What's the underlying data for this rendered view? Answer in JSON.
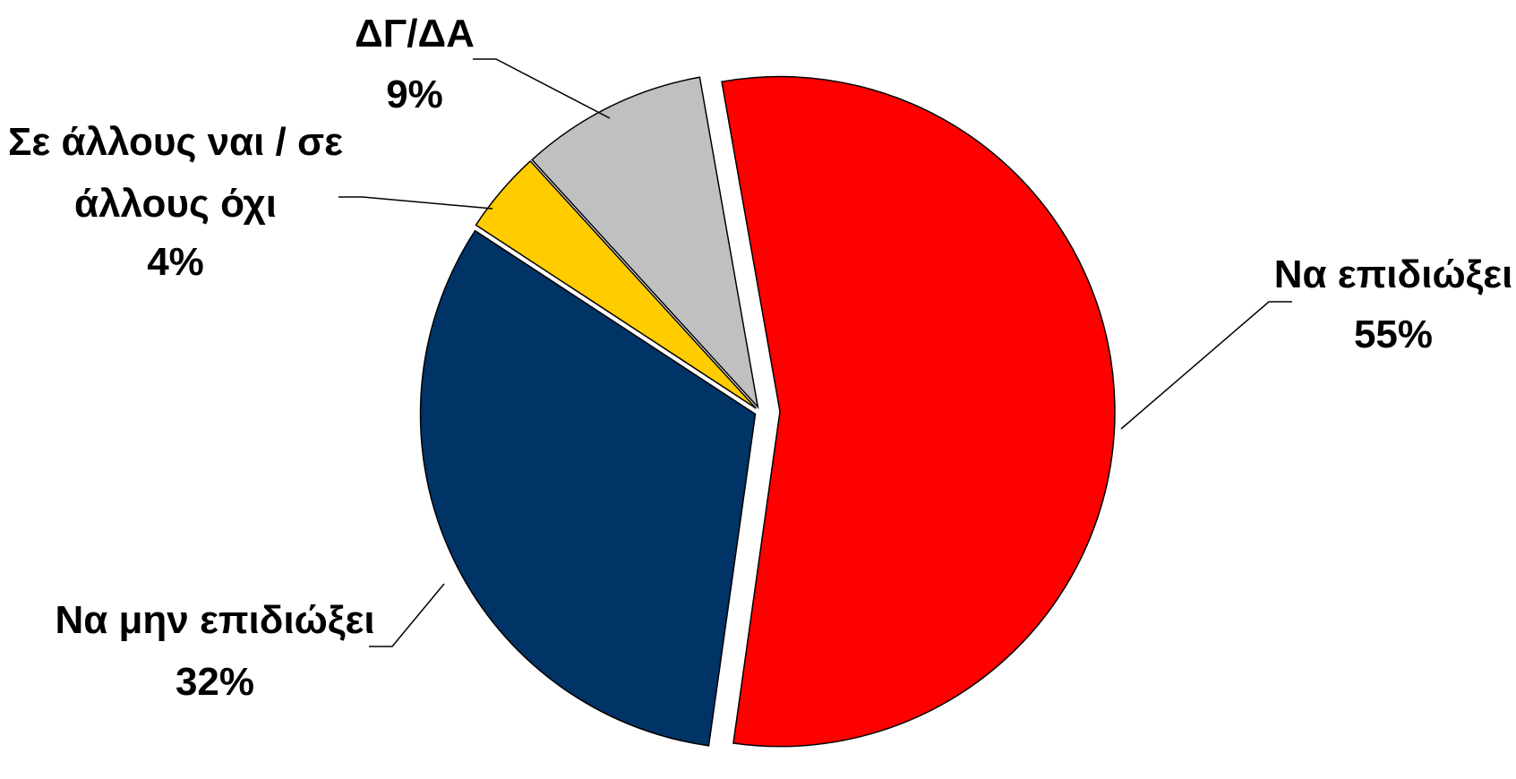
{
  "chart_data": {
    "type": "pie",
    "slices": [
      {
        "label": "Να επιδιώξει",
        "value_label": "55%",
        "value": 55,
        "color": "#FF0000"
      },
      {
        "label": "Να μην επιδιώξει",
        "value_label": "32%",
        "value": 32,
        "color": "#003366"
      },
      {
        "label": "Σε άλλους ναι / σε άλλους όχι",
        "label_lines": [
          "Σε άλλους ναι / σε",
          "άλλους όχι"
        ],
        "value_label": "4%",
        "value": 4,
        "color": "#FFCC00"
      },
      {
        "label": "ΔΓ/ΔΑ",
        "value_label": "9%",
        "value": 9,
        "color": "#C0C0C0"
      }
    ],
    "exploded": true,
    "legend": "none"
  }
}
